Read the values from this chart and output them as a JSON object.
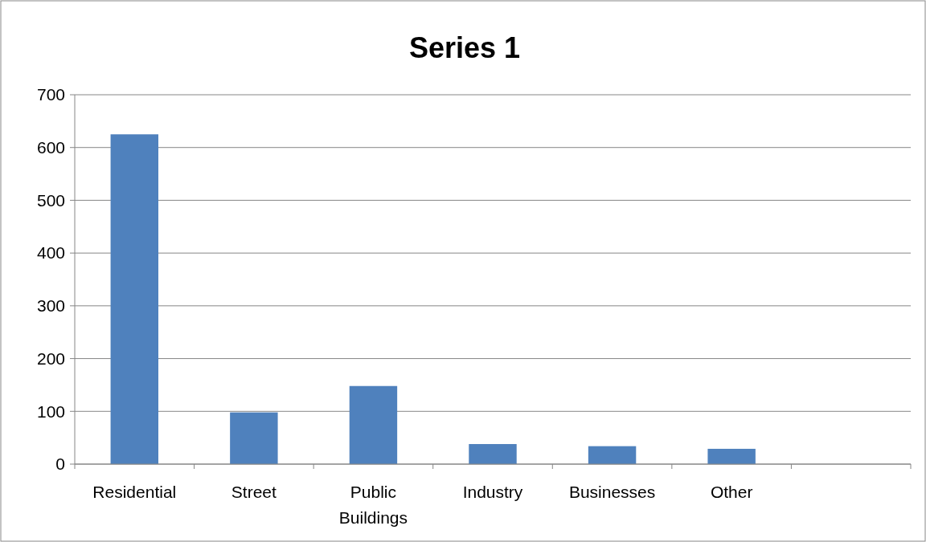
{
  "chart_data": {
    "type": "bar",
    "title": "Series 1",
    "categories": [
      "Residential",
      "Street",
      "Public Buildings",
      "Industry",
      "Businesses",
      "Other",
      null
    ],
    "values": [
      625,
      98,
      148,
      38,
      34,
      29,
      null
    ],
    "color": "#4f81bd",
    "ylim": [
      0,
      700
    ],
    "yticks": [
      0,
      100,
      200,
      300,
      400,
      500,
      600,
      700
    ],
    "grid": "y"
  }
}
